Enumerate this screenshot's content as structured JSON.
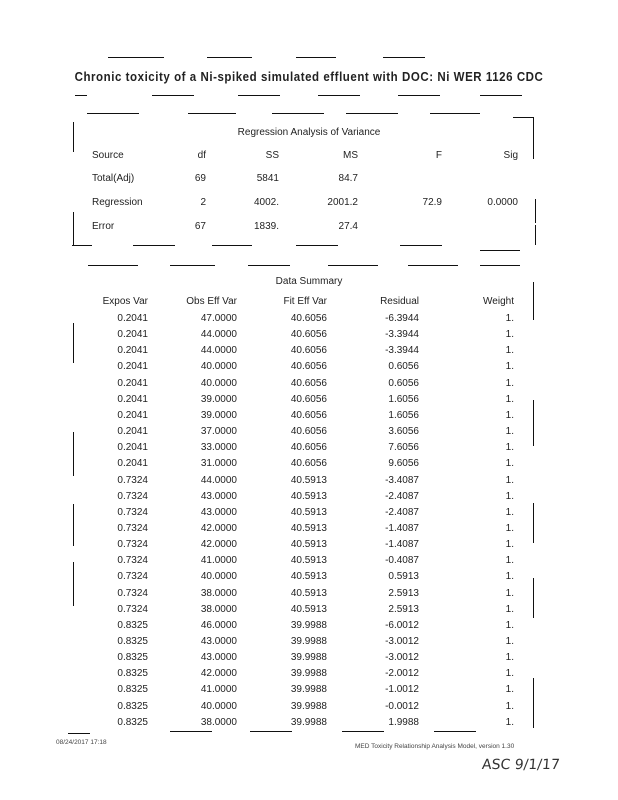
{
  "title": "Chronic toxicity of a Ni-spiked simulated effluent with DOC: Ni WER 1126 CDC",
  "anova": {
    "heading": "Regression Analysis of Variance",
    "columns": [
      "Source",
      "df",
      "SS",
      "MS",
      "F",
      "Sig"
    ],
    "rows": [
      [
        "Total(Adj)",
        "69",
        "5841",
        "84.7",
        "",
        ""
      ],
      [
        "Regression",
        "2",
        "4002.",
        "2001.2",
        "72.9",
        "0.0000"
      ],
      [
        "Error",
        "67",
        "1839.",
        "27.4",
        "",
        ""
      ]
    ]
  },
  "summary": {
    "heading": "Data Summary",
    "columns": [
      "Expos Var",
      "Obs Eff Var",
      "Fit Eff Var",
      "Residual",
      "Weight"
    ],
    "rows": [
      [
        "0.2041",
        "47.0000",
        "40.6056",
        "-6.3944",
        "1."
      ],
      [
        "0.2041",
        "44.0000",
        "40.6056",
        "-3.3944",
        "1."
      ],
      [
        "0.2041",
        "44.0000",
        "40.6056",
        "-3.3944",
        "1."
      ],
      [
        "0.2041",
        "40.0000",
        "40.6056",
        "0.6056",
        "1."
      ],
      [
        "0.2041",
        "40.0000",
        "40.6056",
        "0.6056",
        "1."
      ],
      [
        "0.2041",
        "39.0000",
        "40.6056",
        "1.6056",
        "1."
      ],
      [
        "0.2041",
        "39.0000",
        "40.6056",
        "1.6056",
        "1."
      ],
      [
        "0.2041",
        "37.0000",
        "40.6056",
        "3.6056",
        "1."
      ],
      [
        "0.2041",
        "33.0000",
        "40.6056",
        "7.6056",
        "1."
      ],
      [
        "0.2041",
        "31.0000",
        "40.6056",
        "9.6056",
        "1."
      ],
      [
        "0.7324",
        "44.0000",
        "40.5913",
        "-3.4087",
        "1."
      ],
      [
        "0.7324",
        "43.0000",
        "40.5913",
        "-2.4087",
        "1."
      ],
      [
        "0.7324",
        "43.0000",
        "40.5913",
        "-2.4087",
        "1."
      ],
      [
        "0.7324",
        "42.0000",
        "40.5913",
        "-1.4087",
        "1."
      ],
      [
        "0.7324",
        "42.0000",
        "40.5913",
        "-1.4087",
        "1."
      ],
      [
        "0.7324",
        "41.0000",
        "40.5913",
        "-0.4087",
        "1."
      ],
      [
        "0.7324",
        "40.0000",
        "40.5913",
        "0.5913",
        "1."
      ],
      [
        "0.7324",
        "38.0000",
        "40.5913",
        "2.5913",
        "1."
      ],
      [
        "0.7324",
        "38.0000",
        "40.5913",
        "2.5913",
        "1."
      ],
      [
        "0.8325",
        "46.0000",
        "39.9988",
        "-6.0012",
        "1."
      ],
      [
        "0.8325",
        "43.0000",
        "39.9988",
        "-3.0012",
        "1."
      ],
      [
        "0.8325",
        "43.0000",
        "39.9988",
        "-3.0012",
        "1."
      ],
      [
        "0.8325",
        "42.0000",
        "39.9988",
        "-2.0012",
        "1."
      ],
      [
        "0.8325",
        "41.0000",
        "39.9988",
        "-1.0012",
        "1."
      ],
      [
        "0.8325",
        "40.0000",
        "39.9988",
        "-0.0012",
        "1."
      ],
      [
        "0.8325",
        "38.0000",
        "39.9988",
        "1.9988",
        "1."
      ]
    ]
  },
  "footer": {
    "datetime": "08/24/2017   17:18",
    "program": "MED Toxicity Relationship Analysis Model, version 1.30",
    "handwritten": "ASC 9/1/17"
  }
}
